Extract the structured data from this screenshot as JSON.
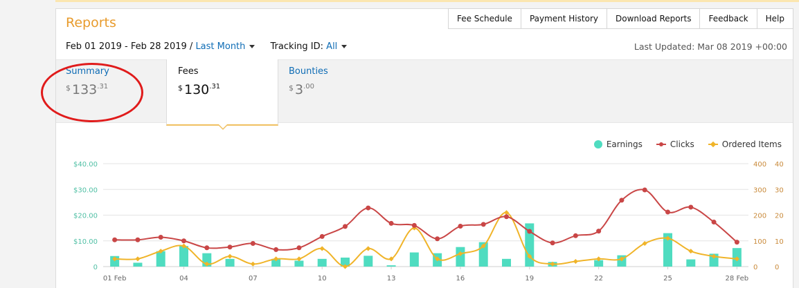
{
  "header": {
    "title": "Reports"
  },
  "top_tabs": [
    "Fee Schedule",
    "Payment History",
    "Download Reports",
    "Feedback",
    "Help"
  ],
  "date_filter": {
    "range": "Feb 01 2019 - Feb 28 2019 /",
    "preset": "Last Month"
  },
  "tracking": {
    "label": "Tracking ID:",
    "value": "All"
  },
  "last_updated": "Last Updated: Mar 08 2019 +00:00",
  "stats": {
    "summary": {
      "label": "Summary",
      "currency": "$",
      "whole": "133",
      "cents": ".31"
    },
    "fees": {
      "label": "Fees",
      "currency": "$",
      "whole": "130",
      "cents": ".31"
    },
    "bounties": {
      "label": "Bounties",
      "currency": "$",
      "whole": "3",
      "cents": ".00"
    }
  },
  "legend": {
    "earnings": "Earnings",
    "clicks": "Clicks",
    "ordered": "Ordered Items"
  },
  "colors": {
    "earnings": "#4fdcc0",
    "clicks": "#c94646",
    "ordered": "#f0b429",
    "accent": "#e89b2c",
    "link": "#0e6cb5",
    "annotation": "#e01b1b"
  },
  "chart_data": {
    "type": "bar",
    "x_tick_labels": [
      "01 Feb",
      "04",
      "07",
      "10",
      "13",
      "16",
      "19",
      "22",
      "25",
      "28 Feb"
    ],
    "x_tick_days": [
      1,
      4,
      7,
      10,
      13,
      16,
      19,
      22,
      25,
      28
    ],
    "y_left": {
      "ticks": [
        "$40.00",
        "$30.00",
        "$20.00",
        "$10.00",
        "0"
      ],
      "min": 0,
      "max": 40
    },
    "y_right_clicks": {
      "ticks": [
        "400",
        "300",
        "200",
        "100",
        "0"
      ],
      "min": 0,
      "max": 400
    },
    "y_right_ordered": {
      "ticks": [
        "40",
        "30",
        "20",
        "10",
        "0"
      ],
      "min": 0,
      "max": 40
    },
    "series": [
      {
        "name": "Earnings",
        "type": "bar",
        "axis": "left",
        "values": [
          4.1,
          1.5,
          6.0,
          8.0,
          5.2,
          3.0,
          0,
          3.0,
          2.3,
          3.0,
          3.5,
          4.2,
          0.5,
          5.5,
          5.2,
          7.6,
          9.5,
          3.0,
          16.8,
          1.8,
          0,
          2.5,
          4.4,
          0,
          13.0,
          2.8,
          5.0,
          7.2
        ]
      },
      {
        "name": "Clicks",
        "type": "line",
        "axis": "right_clicks",
        "values": [
          104,
          104,
          114,
          100,
          73,
          76,
          90,
          66,
          73,
          117,
          156,
          228,
          168,
          160,
          108,
          157,
          164,
          194,
          137,
          92,
          120,
          138,
          258,
          298,
          212,
          231,
          173,
          95
        ]
      },
      {
        "name": "Ordered Items",
        "type": "line",
        "axis": "right_ordered",
        "values": [
          3,
          3,
          6,
          8,
          1,
          4,
          1,
          3,
          3,
          7,
          0,
          7,
          3,
          15,
          3,
          5,
          8,
          21,
          4,
          1,
          2,
          3,
          3,
          9,
          11,
          6,
          4,
          3
        ]
      }
    ]
  }
}
